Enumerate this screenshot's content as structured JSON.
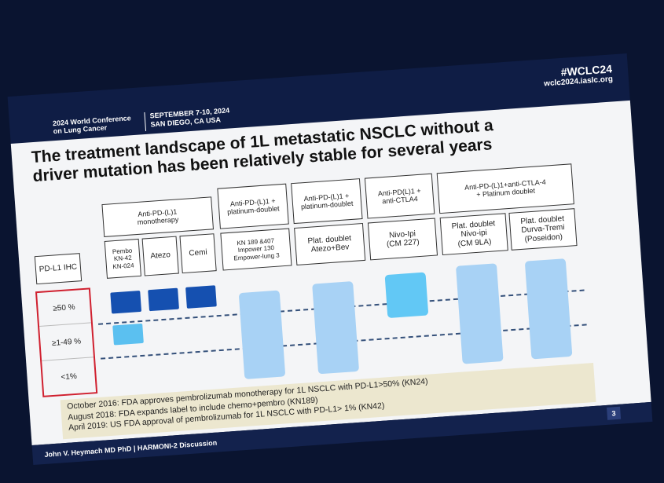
{
  "header": {
    "conference": [
      "2024 World Conference",
      "on Lung Cancer"
    ],
    "dates": "SEPTEMBER 7-10, 2024",
    "location": "SAN DIEGO, CA USA",
    "hashtag": "#WCLC24",
    "url": "wclc2024.iaslc.org"
  },
  "title": [
    "The treatment landscape of 1L metastatic NSCLC without a",
    "driver mutation has been relatively stable for several years"
  ],
  "table": {
    "row_header": "PD-L1 IHC",
    "rows": [
      "≥50 %",
      "≥1-49 %",
      "<1%"
    ],
    "groups": [
      {
        "label": [
          "Anti-PD-(L)1",
          "monotherapy"
        ],
        "columns": [
          {
            "lines": [
              "Pembo",
              "KN-42",
              "KN-024"
            ]
          },
          {
            "lines": [
              "Atezo"
            ]
          },
          {
            "lines": [
              "Cemi"
            ]
          }
        ]
      },
      {
        "label": [
          "Anti-PD-(L)1 +",
          "platinum-doublet"
        ],
        "columns": [
          {
            "lines": [
              "KN 189 &407",
              "Impower 130",
              "Empower-lung 3"
            ]
          }
        ]
      },
      {
        "label": [
          "Anti-PD-(L)1 +",
          "platinum-doublet"
        ],
        "columns": [
          {
            "lines": [
              "Plat. doublet",
              "Atezo+Bev"
            ]
          }
        ]
      },
      {
        "label": [
          "Anti-PD(L)1 +",
          "anti-CTLA4"
        ],
        "columns": [
          {
            "lines": [
              "Nivo-Ipi",
              "(CM 227)"
            ]
          }
        ]
      },
      {
        "label": [
          "Anti-PD-(L)1+anti-CTLA-4",
          "+ Platinum doublet"
        ],
        "columns": [
          {
            "lines": [
              "Plat. doublet",
              "Nivo-ipi",
              "(CM 9LA)"
            ]
          },
          {
            "lines": [
              "Plat. doublet",
              "Durva-Tremi",
              "(Poseidon)"
            ]
          }
        ]
      }
    ]
  },
  "notes": [
    "October 2016: FDA approves pembrolizumab monotherapy for 1L NSCLC with PD-L1>50% (KN24)",
    "August 2018: FDA expands label to include chemo+pembro (KN189)",
    "April 2019: US FDA approval of pembrolizumab for 1L NSCLC with PD-L1> 1% (KN42)"
  ],
  "footer": {
    "author": "John V. Heymach MD PhD | HARMONI-2 Discussion",
    "page": "3"
  }
}
